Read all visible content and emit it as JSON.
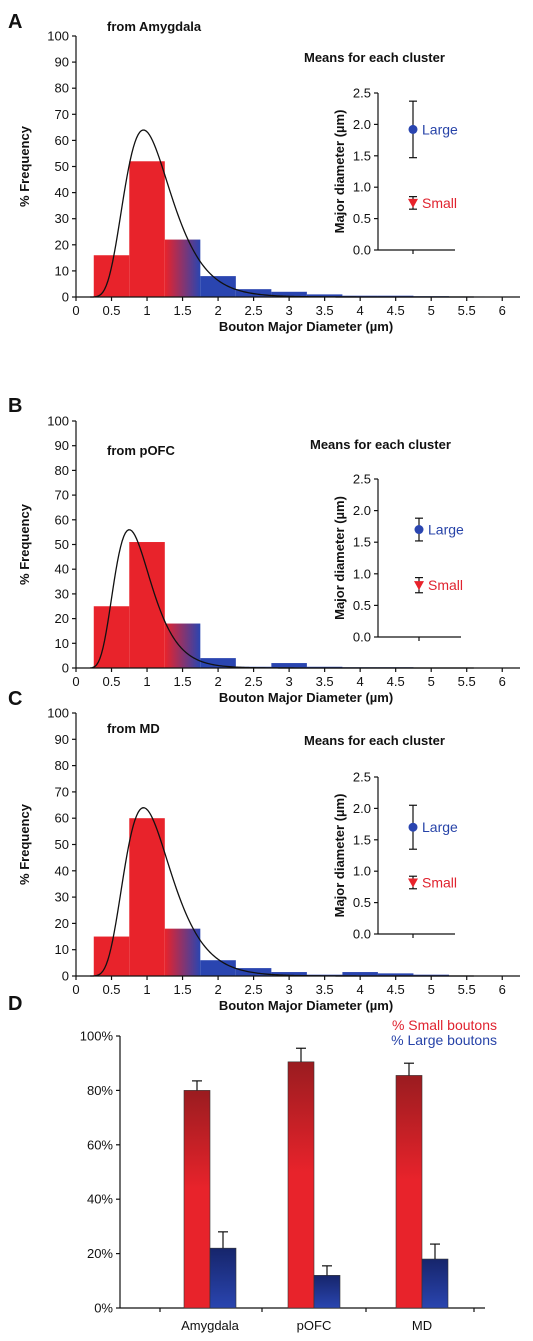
{
  "colors": {
    "small": "#e8232b",
    "large": "#2a45b0",
    "small_dark": "#9a1c20",
    "large_dark": "#16256b",
    "axis": "#111111"
  },
  "chart_data": [
    {
      "type": "bar",
      "panel": "A",
      "title": "from Amygdala",
      "xlabel": "Bouton Major Diameter (µm)",
      "ylabel": "% Frequency",
      "xlim": [
        0,
        6.25
      ],
      "ylim": [
        0,
        100
      ],
      "x_ticks": [
        "0",
        "0.5",
        "1",
        "1.5",
        "2",
        "2.5",
        "3",
        "3.5",
        "4",
        "4.5",
        "5",
        "5.5",
        "6"
      ],
      "y_ticks": [
        "0",
        "10",
        "20",
        "30",
        "40",
        "50",
        "60",
        "70",
        "80",
        "90",
        "100"
      ],
      "bin_width": 0.5,
      "bin_starts": [
        0.25,
        0.75,
        1.25,
        1.75,
        2.25,
        2.75,
        3.25,
        3.75,
        4.25,
        4.75,
        5.25,
        5.75
      ],
      "values": [
        16,
        52,
        22,
        8,
        3,
        2,
        1,
        0.5,
        0.5,
        0.3,
        0.2,
        0.1
      ],
      "fit_curve": {
        "peak_x": 0.95,
        "peak_y": 64
      },
      "inset": {
        "title": "Means for each cluster",
        "ylabel": "Major diameter (µm)",
        "ylim": [
          0,
          2.5
        ],
        "y_ticks": [
          "0.0",
          "0.5",
          "1.0",
          "1.5",
          "2.0",
          "2.5"
        ],
        "points": [
          {
            "label": "Large",
            "mean": 1.92,
            "error": 0.45,
            "marker": "circle"
          },
          {
            "label": "Small",
            "mean": 0.75,
            "error": 0.1,
            "marker": "triangle"
          }
        ]
      }
    },
    {
      "type": "bar",
      "panel": "B",
      "title": "from pOFC",
      "xlabel": "Bouton Major Diameter (µm)",
      "ylabel": "% Frequency",
      "xlim": [
        0,
        6.25
      ],
      "ylim": [
        0,
        100
      ],
      "x_ticks": [
        "0",
        "0.5",
        "1",
        "1.5",
        "2",
        "2.5",
        "3",
        "3.5",
        "4",
        "4.5",
        "5",
        "5.5",
        "6"
      ],
      "y_ticks": [
        "0",
        "10",
        "20",
        "30",
        "40",
        "50",
        "60",
        "70",
        "80",
        "90",
        "100"
      ],
      "bin_width": 0.5,
      "bin_starts": [
        0.25,
        0.75,
        1.25,
        1.75,
        2.25,
        2.75,
        3.25,
        3.75,
        4.25,
        4.75,
        5.25,
        5.75
      ],
      "values": [
        25,
        51,
        18,
        4,
        0.5,
        2,
        0.5,
        0.3,
        0.3,
        0.2,
        0,
        0
      ],
      "fit_curve": {
        "peak_x": 0.75,
        "peak_y": 56
      },
      "inset": {
        "title": "Means for each cluster",
        "ylabel": "Major diameter (µm)",
        "ylim": [
          0,
          2.5
        ],
        "y_ticks": [
          "0.0",
          "0.5",
          "1.0",
          "1.5",
          "2.0",
          "2.5"
        ],
        "points": [
          {
            "label": "Large",
            "mean": 1.7,
            "error": 0.18,
            "marker": "circle"
          },
          {
            "label": "Small",
            "mean": 0.82,
            "error": 0.12,
            "marker": "triangle"
          }
        ]
      }
    },
    {
      "type": "bar",
      "panel": "C",
      "title": "from MD",
      "xlabel": "Bouton Major Diameter (µm)",
      "ylabel": "% Frequency",
      "xlim": [
        0,
        6.25
      ],
      "ylim": [
        0,
        100
      ],
      "x_ticks": [
        "0",
        "0.5",
        "1",
        "1.5",
        "2",
        "2.5",
        "3",
        "3.5",
        "4",
        "4.5",
        "5",
        "5.5",
        "6"
      ],
      "y_ticks": [
        "0",
        "10",
        "20",
        "30",
        "40",
        "50",
        "60",
        "70",
        "80",
        "90",
        "100"
      ],
      "bin_width": 0.5,
      "bin_starts": [
        0.25,
        0.75,
        1.25,
        1.75,
        2.25,
        2.75,
        3.25,
        3.75,
        4.25,
        4.75,
        5.25,
        5.75
      ],
      "values": [
        15,
        60,
        18,
        6,
        3,
        1.5,
        0.5,
        1.5,
        1,
        0.5,
        0,
        0
      ],
      "fit_curve": {
        "peak_x": 0.95,
        "peak_y": 64
      },
      "inset": {
        "title": "Means for each cluster",
        "ylabel": "Major diameter (µm)",
        "ylim": [
          0,
          2.5
        ],
        "y_ticks": [
          "0.0",
          "0.5",
          "1.0",
          "1.5",
          "2.0",
          "2.5"
        ],
        "points": [
          {
            "label": "Large",
            "mean": 1.7,
            "error": 0.35,
            "marker": "circle"
          },
          {
            "label": "Small",
            "mean": 0.82,
            "error": 0.1,
            "marker": "triangle"
          }
        ]
      }
    },
    {
      "type": "bar",
      "panel": "D",
      "categories": [
        "Amygdala",
        "pOFC",
        "MD"
      ],
      "series": [
        {
          "name": "% Small boutons",
          "values": [
            80,
            90.5,
            85.5
          ],
          "errors": [
            3.5,
            5,
            4.5
          ]
        },
        {
          "name": "% Large boutons",
          "values": [
            22,
            12,
            18
          ],
          "errors": [
            6,
            3.5,
            5.5
          ]
        }
      ],
      "ylim": [
        0,
        100
      ],
      "y_ticks": [
        "0%",
        "20%",
        "40%",
        "60%",
        "80%",
        "100%"
      ],
      "legend_position": "top-right"
    }
  ]
}
